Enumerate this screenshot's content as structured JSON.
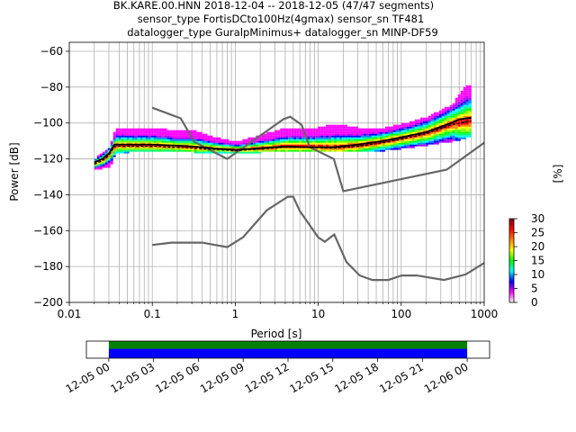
{
  "chart_data": {
    "type": "ppsd",
    "title_lines": [
      "BK.KARE.00.HNN   2018-12-04 -- 2018-12-05  (47/47 segments)",
      "sensor_type FortisDCto100Hz(4gmax) sensor_sn TF481",
      "datalogger_type GuralpMinimus+ datalogger_sn MINP-DF59"
    ],
    "xlabel": "Period [s]",
    "ylabel": "Power [dB]",
    "x_scale": "log",
    "xlim": [
      0.01,
      1000
    ],
    "ylim": [
      -200,
      -55
    ],
    "x_ticks": [
      {
        "value": 0.01,
        "label": "0.01"
      },
      {
        "value": 0.1,
        "label": "0.1"
      },
      {
        "value": 1,
        "label": "1"
      },
      {
        "value": 10,
        "label": "10"
      },
      {
        "value": 100,
        "label": "100"
      },
      {
        "value": 1000,
        "label": "1000"
      }
    ],
    "y_ticks": [
      {
        "value": -60,
        "label": "−60"
      },
      {
        "value": -80,
        "label": "−80"
      },
      {
        "value": -100,
        "label": "−100"
      },
      {
        "value": -120,
        "label": "−120"
      },
      {
        "value": -140,
        "label": "−140"
      },
      {
        "value": -160,
        "label": "−160"
      },
      {
        "value": -180,
        "label": "−180"
      },
      {
        "value": -200,
        "label": "−200"
      }
    ],
    "grid": true,
    "nhnm": [
      [
        0.1,
        -91.5
      ],
      [
        0.22,
        -97.4
      ],
      [
        0.32,
        -110.5
      ],
      [
        0.8,
        -120
      ],
      [
        3.8,
        -97.9
      ],
      [
        4.6,
        -96.5
      ],
      [
        6.3,
        -101
      ],
      [
        7.9,
        -113.5
      ],
      [
        15.4,
        -120
      ],
      [
        20,
        -138
      ],
      [
        354,
        -126
      ],
      [
        1000,
        -111
      ]
    ],
    "nlnm": [
      [
        0.1,
        -168
      ],
      [
        0.17,
        -166.7
      ],
      [
        0.4,
        -166.7
      ],
      [
        0.8,
        -169.2
      ],
      [
        1.24,
        -163.7
      ],
      [
        2.4,
        -148.6
      ],
      [
        4.3,
        -141.1
      ],
      [
        5,
        -141.1
      ],
      [
        6,
        -149
      ],
      [
        10,
        -163.8
      ],
      [
        12,
        -166.2
      ],
      [
        15.6,
        -162.1
      ],
      [
        21.9,
        -177.5
      ],
      [
        31.6,
        -185
      ],
      [
        45,
        -187.5
      ],
      [
        70,
        -187.5
      ],
      [
        101,
        -185
      ],
      [
        154,
        -185
      ],
      [
        328,
        -187.5
      ],
      [
        600,
        -184.4
      ],
      [
        1000,
        -178
      ]
    ],
    "mean": [
      [
        0.02,
        -122
      ],
      [
        0.025,
        -120
      ],
      [
        0.03,
        -117
      ],
      [
        0.035,
        -112
      ],
      [
        0.1,
        -112
      ],
      [
        0.3,
        -113
      ],
      [
        0.7,
        -114.5
      ],
      [
        1,
        -115
      ],
      [
        2,
        -114
      ],
      [
        4,
        -113
      ],
      [
        8,
        -113.5
      ],
      [
        15,
        -113.5
      ],
      [
        30,
        -112
      ],
      [
        60,
        -110
      ],
      [
        100,
        -108
      ],
      [
        200,
        -105
      ],
      [
        400,
        -100
      ],
      [
        500,
        -98
      ],
      [
        700,
        -97
      ]
    ],
    "mode": [
      [
        0.02,
        -123
      ],
      [
        0.025,
        -121
      ],
      [
        0.03,
        -118
      ],
      [
        0.035,
        -113
      ],
      [
        0.1,
        -113
      ],
      [
        0.3,
        -114
      ],
      [
        0.7,
        -115
      ],
      [
        1,
        -115.5
      ],
      [
        2,
        -114.5
      ],
      [
        4,
        -113.5
      ],
      [
        8,
        -113.5
      ],
      [
        15,
        -114
      ],
      [
        30,
        -113
      ],
      [
        60,
        -111
      ],
      [
        100,
        -109
      ],
      [
        200,
        -106
      ],
      [
        400,
        -101
      ],
      [
        700,
        -99
      ]
    ],
    "density_envelope": {
      "period": [
        0.02,
        0.03,
        0.035,
        0.05,
        0.1,
        0.2,
        0.3,
        0.5,
        1,
        2,
        4,
        8,
        15,
        30,
        60,
        100,
        200,
        400,
        600,
        700
      ],
      "upper": [
        -120,
        -114,
        -103,
        -103,
        -103,
        -105,
        -104,
        -108,
        -111,
        -107,
        -103,
        -104,
        -101,
        -103,
        -103,
        -101,
        -97,
        -90,
        -79,
        -79
      ],
      "lower": [
        -126,
        -124,
        -117,
        -116,
        -116,
        -116,
        -116,
        -117,
        -117,
        -116,
        -115,
        -116,
        -116,
        -116,
        -115,
        -114,
        -112,
        -110,
        -108,
        -108
      ]
    },
    "colorbar": {
      "label": "[%]",
      "range": [
        0,
        30
      ],
      "ticks": [
        {
          "value": 0,
          "label": "0"
        },
        {
          "value": 5,
          "label": "5"
        },
        {
          "value": 10,
          "label": "10"
        },
        {
          "value": 15,
          "label": "15"
        },
        {
          "value": 20,
          "label": "20"
        },
        {
          "value": 25,
          "label": "25"
        },
        {
          "value": 30,
          "label": "30"
        }
      ],
      "colors": [
        "#ffffff",
        "#ff00ff",
        "#0000ff",
        "#00ffff",
        "#00ff00",
        "#ffff00",
        "#ff8000",
        "#ff0000",
        "#800000"
      ]
    },
    "coverage": {
      "ticks": [
        "12-05 00",
        "12-05 03",
        "12-05 06",
        "12-05 09",
        "12-05 12",
        "12-05 15",
        "12-05 18",
        "12-05 21",
        "12-06 00"
      ],
      "range_hours": [
        -1.5,
        25.5
      ],
      "data_span_hours": [
        0,
        24
      ],
      "colors": {
        "used": "#0000ff",
        "processed": "#008000"
      }
    },
    "line_colors": {
      "noise_models": "#666666",
      "mean": "#000000",
      "mode": "#000000"
    }
  }
}
